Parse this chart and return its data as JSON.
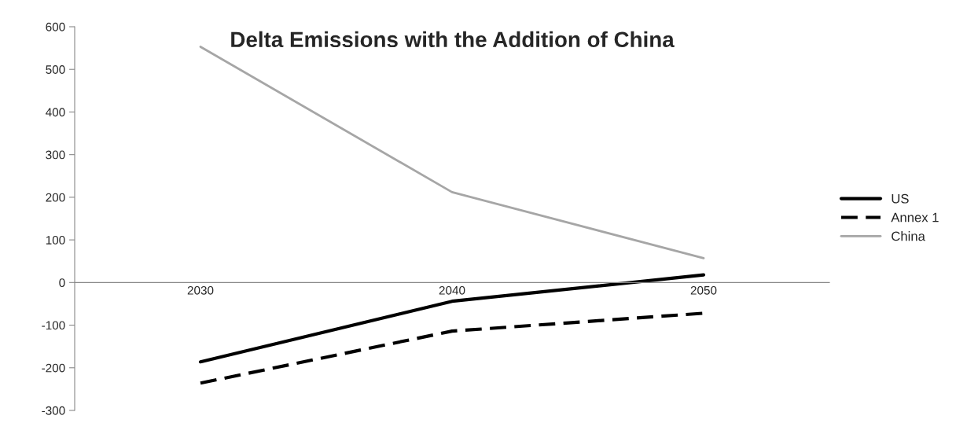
{
  "chart_data": {
    "type": "line",
    "title": "Delta Emissions with the Addition of China",
    "categories": [
      "2030",
      "2040",
      "2050"
    ],
    "series": [
      {
        "name": "US",
        "color": "#000000",
        "line_style": "solid",
        "values": [
          -186,
          -44,
          18
        ]
      },
      {
        "name": "Annex 1",
        "color": "#000000",
        "line_style": "dashed",
        "values": [
          -236,
          -114,
          -72
        ]
      },
      {
        "name": "China",
        "color": "#a6a6a6",
        "line_style": "solid",
        "values": [
          553,
          212,
          57
        ]
      }
    ],
    "ylim": [
      -300,
      600
    ],
    "yticks": [
      -300,
      -200,
      -100,
      0,
      100,
      200,
      300,
      400,
      500,
      600
    ],
    "grid": false,
    "legend": "right",
    "marker": "none"
  }
}
